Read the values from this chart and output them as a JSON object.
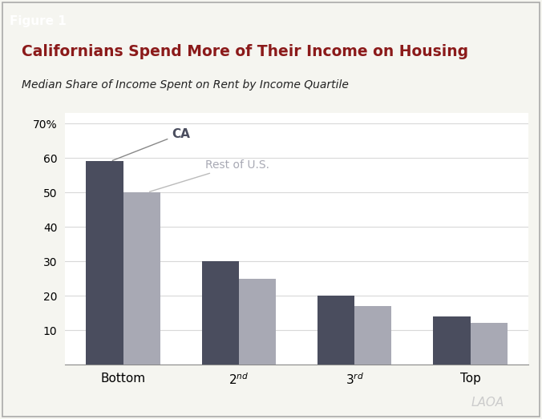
{
  "title": "Californians Spend More of Their Income on Housing",
  "subtitle": "Median Share of Income Spent on Rent by Income Quartile",
  "figure_label": "Figure 1",
  "categories": [
    "Bottom",
    "2$^{nd}$",
    "3$^{rd}$",
    "Top"
  ],
  "ca_values": [
    59,
    30,
    20,
    14
  ],
  "us_values": [
    50,
    25,
    17,
    12
  ],
  "ca_color": "#4a4d5e",
  "us_color": "#a8a9b4",
  "title_color": "#8b1a1a",
  "subtitle_color": "#222222",
  "yticks": [
    10,
    20,
    30,
    40,
    50,
    60,
    70
  ],
  "ylim": [
    0,
    73
  ],
  "bar_width": 0.32,
  "background_color": "#f5f5f0",
  "plot_bg_color": "#ffffff",
  "ca_label": "CA",
  "us_label": "Rest of U.S.",
  "lao_text": "LAOA",
  "border_color": "#aaaaaa",
  "grid_color": "#d8d8d8",
  "tick_font_size": 10,
  "xlabel_font_size": 11
}
